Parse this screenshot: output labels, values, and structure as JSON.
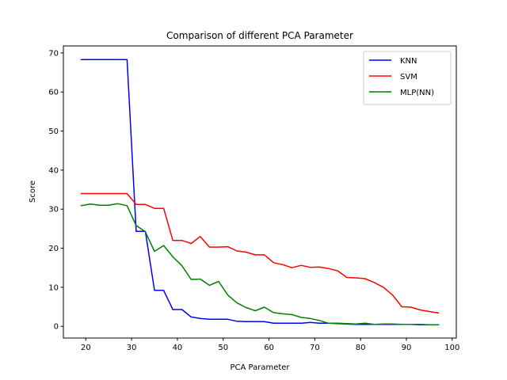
{
  "chart_data": {
    "type": "line",
    "title": "Comparison of different PCA Parameter",
    "xlabel": "PCA Parameter",
    "ylabel": "Score",
    "xlim": [
      15.1,
      100.9
    ],
    "ylim": [
      -3.0,
      71.8
    ],
    "xticks": [
      20,
      30,
      40,
      50,
      60,
      70,
      80,
      90,
      100
    ],
    "yticks": [
      0,
      10,
      20,
      30,
      40,
      50,
      60,
      70
    ],
    "grid": false,
    "legend_position": "top-right",
    "x": [
      19,
      21,
      23,
      25,
      27,
      29,
      31,
      33,
      35,
      37,
      39,
      41,
      43,
      45,
      47,
      49,
      51,
      53,
      55,
      57,
      59,
      61,
      63,
      65,
      67,
      69,
      71,
      73,
      75,
      77,
      79,
      81,
      83,
      85,
      87,
      89,
      91,
      93,
      95,
      97
    ],
    "series": [
      {
        "name": "KNN",
        "color": "#0000ff",
        "values": [
          68.3,
          68.3,
          68.3,
          68.3,
          68.3,
          68.3,
          24.3,
          24.3,
          9.2,
          9.2,
          4.3,
          4.3,
          2.4,
          2.0,
          1.8,
          1.8,
          1.8,
          1.3,
          1.2,
          1.2,
          1.2,
          0.8,
          0.8,
          0.8,
          0.8,
          1.0,
          0.8,
          0.8,
          0.7,
          0.6,
          0.5,
          0.5,
          0.5,
          0.5,
          0.5,
          0.5,
          0.5,
          0.4,
          0.4,
          0.4
        ]
      },
      {
        "name": "SVM",
        "color": "#ff0000",
        "values": [
          34.0,
          34.0,
          34.0,
          34.0,
          34.0,
          34.0,
          31.2,
          31.2,
          30.2,
          30.2,
          22.0,
          22.0,
          21.2,
          23.0,
          20.3,
          20.3,
          20.4,
          19.3,
          19.0,
          18.3,
          18.3,
          16.3,
          15.8,
          15.0,
          15.6,
          15.1,
          15.2,
          14.8,
          14.2,
          12.5,
          12.4,
          12.2,
          11.2,
          10.0,
          8.0,
          5.0,
          4.9,
          4.2,
          3.8,
          3.4
        ]
      },
      {
        "name": "MLP(NN)",
        "color": "#008000",
        "values": [
          30.9,
          31.3,
          31.0,
          31.0,
          31.4,
          30.9,
          25.8,
          24.2,
          19.2,
          20.7,
          17.8,
          15.5,
          12.0,
          12.1,
          10.5,
          11.5,
          8.0,
          6.0,
          4.8,
          4.0,
          4.9,
          3.5,
          3.2,
          3.0,
          2.3,
          2.0,
          1.5,
          0.8,
          0.8,
          0.7,
          0.6,
          0.8,
          0.5,
          0.6,
          0.6,
          0.5,
          0.5,
          0.5,
          0.4,
          0.4
        ]
      }
    ]
  }
}
